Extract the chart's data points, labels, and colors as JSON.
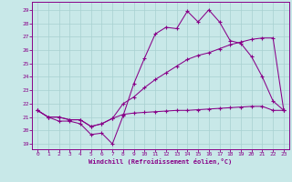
{
  "background_color": "#c8e8e8",
  "grid_color": "#a8d0d0",
  "line_color": "#880088",
  "spine_color": "#880088",
  "xlim": [
    -0.5,
    23.5
  ],
  "ylim": [
    18.6,
    29.6
  ],
  "yticks": [
    19,
    20,
    21,
    22,
    23,
    24,
    25,
    26,
    27,
    28,
    29
  ],
  "xticks": [
    0,
    1,
    2,
    3,
    4,
    5,
    6,
    7,
    8,
    9,
    10,
    11,
    12,
    13,
    14,
    15,
    16,
    17,
    18,
    19,
    20,
    21,
    22,
    23
  ],
  "xlabel": "Windchill (Refroidissement éolien,°C)",
  "s1_x": [
    0,
    1,
    2,
    3,
    4,
    5,
    6,
    7,
    8,
    9,
    10,
    11,
    12,
    13,
    14,
    15,
    16,
    17,
    18,
    19,
    20,
    21,
    22,
    23
  ],
  "s1_y": [
    21.5,
    21.0,
    20.7,
    20.7,
    20.5,
    19.7,
    19.8,
    19.0,
    21.1,
    23.5,
    25.4,
    27.2,
    27.7,
    27.6,
    28.9,
    28.1,
    29.0,
    28.1,
    26.7,
    26.5,
    25.5,
    24.0,
    22.2,
    21.5
  ],
  "s2_x": [
    0,
    1,
    2,
    3,
    4,
    5,
    6,
    7,
    8,
    9,
    10,
    11,
    12,
    13,
    14,
    15,
    16,
    17,
    18,
    19,
    20,
    21,
    22,
    23
  ],
  "s2_y": [
    21.5,
    21.0,
    21.0,
    20.8,
    20.8,
    20.3,
    20.5,
    20.9,
    22.0,
    22.5,
    23.2,
    23.8,
    24.3,
    24.8,
    25.3,
    25.6,
    25.8,
    26.1,
    26.4,
    26.6,
    26.8,
    26.9,
    26.9,
    21.5
  ],
  "s3_x": [
    0,
    1,
    2,
    3,
    4,
    5,
    6,
    7,
    8,
    9,
    10,
    11,
    12,
    13,
    14,
    15,
    16,
    17,
    18,
    19,
    20,
    21,
    22,
    23
  ],
  "s3_y": [
    21.5,
    21.0,
    21.0,
    20.8,
    20.8,
    20.3,
    20.5,
    20.9,
    21.2,
    21.3,
    21.35,
    21.4,
    21.45,
    21.5,
    21.5,
    21.55,
    21.6,
    21.65,
    21.7,
    21.75,
    21.8,
    21.8,
    21.5,
    21.5
  ]
}
